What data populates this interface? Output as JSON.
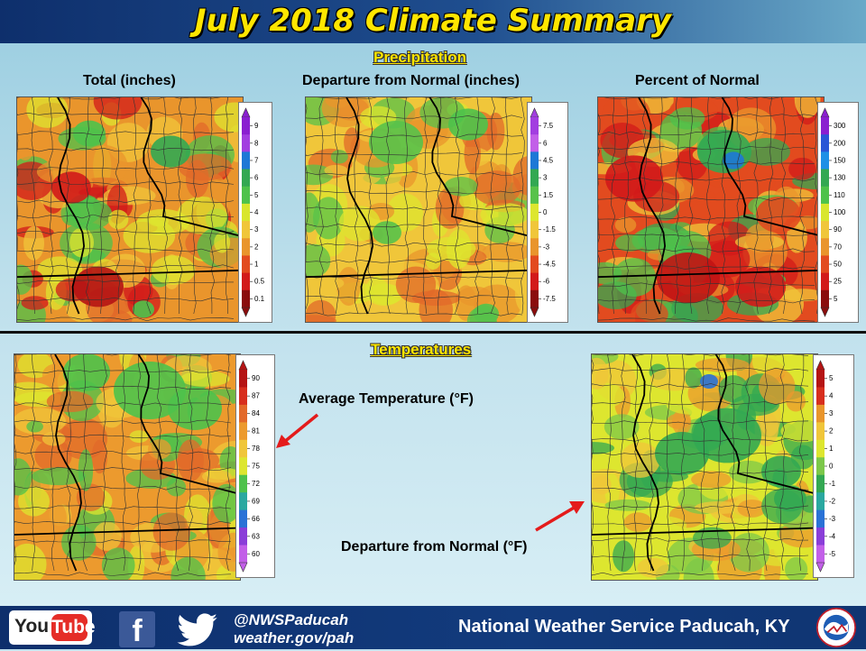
{
  "title": "July 2018 Climate Summary",
  "sections": {
    "precipitation": "Precipitation",
    "temperatures": "Temperatures"
  },
  "precip_maps": [
    {
      "caption": "Total (inches)",
      "legend_labels": [
        "9",
        "8",
        "7",
        "6",
        "5",
        "4",
        "3",
        "2",
        "1",
        "0.5",
        "0.1"
      ],
      "legend_colors": [
        "#8a1fd0",
        "#a23ee0",
        "#1e78d6",
        "#33a852",
        "#4ec24b",
        "#d9e62d",
        "#f0c63a",
        "#e9952c",
        "#e24b1f",
        "#d21a1a",
        "#8a0d0d"
      ]
    },
    {
      "caption": "Departure from Normal (inches)",
      "legend_labels": [
        "7.5",
        "6",
        "4.5",
        "3",
        "1.5",
        "0",
        "-1.5",
        "-3",
        "-4.5",
        "-6",
        "-7.5"
      ],
      "legend_colors": [
        "#a23ee0",
        "#c25fe8",
        "#1e78d6",
        "#33a852",
        "#58c24a",
        "#dde62f",
        "#f0c63a",
        "#e9952c",
        "#e24b1f",
        "#d21a1a",
        "#8a0d0d"
      ]
    },
    {
      "caption": "Percent of Normal",
      "legend_labels": [
        "300",
        "200",
        "150",
        "130",
        "110",
        "100",
        "90",
        "70",
        "50",
        "25",
        "5"
      ],
      "legend_colors": [
        "#8a1fd0",
        "#2a56d6",
        "#1e90e6",
        "#33a852",
        "#4ec24b",
        "#d9e62d",
        "#f0c63a",
        "#e9952c",
        "#e24b1f",
        "#d21a1a",
        "#8a0d0d"
      ]
    }
  ],
  "temp_maps": [
    {
      "caption": "Average Temperature (°F)",
      "legend_labels": [
        "90",
        "87",
        "84",
        "81",
        "78",
        "75",
        "72",
        "69",
        "66",
        "63",
        "60"
      ],
      "legend_colors": [
        "#b51414",
        "#d72e1e",
        "#e2692a",
        "#ec9a2e",
        "#f0c63a",
        "#dde62f",
        "#4ec24b",
        "#2aa8a0",
        "#2a72d6",
        "#8a3ed8",
        "#c25fe8"
      ]
    },
    {
      "caption": "Departure from Normal (°F)",
      "legend_labels": [
        "5",
        "4",
        "3",
        "2",
        "1",
        "0",
        "-1",
        "-2",
        "-3",
        "-4",
        "-5"
      ],
      "legend_colors": [
        "#b51414",
        "#d72e1e",
        "#e9952c",
        "#f0c63a",
        "#dde62f",
        "#7cc84a",
        "#33a852",
        "#2aa8a0",
        "#2a72d6",
        "#8a3ed8",
        "#c25fe8"
      ]
    }
  ],
  "footer": {
    "youtube_you": "You",
    "youtube_tube": "Tube",
    "facebook_icon": "facebook-icon",
    "twitter_icon": "twitter-icon",
    "handle": "@NWSPaducah",
    "website": "weather.gov/pah",
    "office": "National Weather Service Paducah, KY",
    "accent_red": "#e52d27"
  }
}
